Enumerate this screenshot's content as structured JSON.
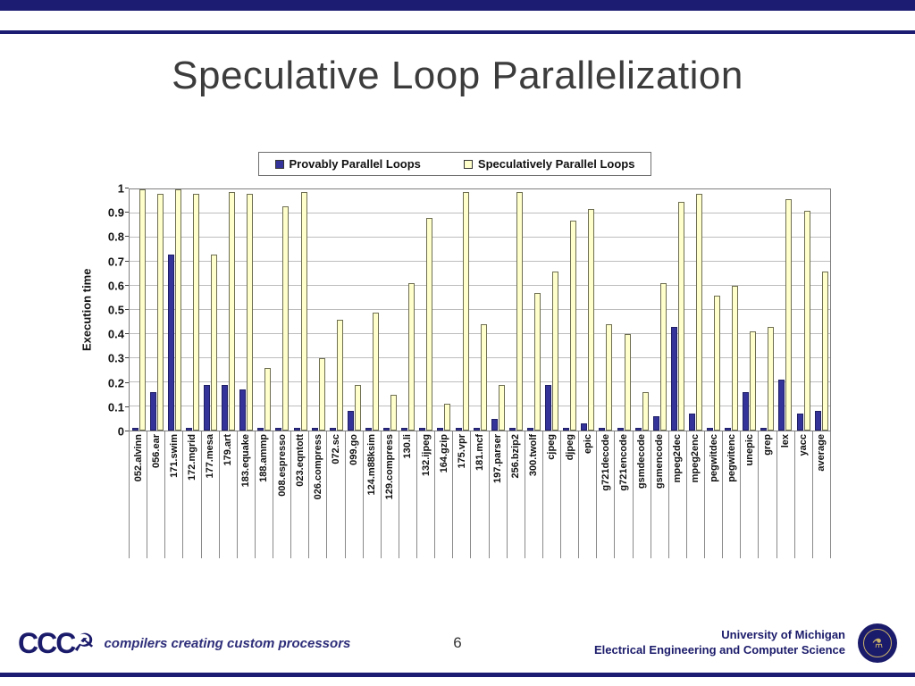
{
  "title": "Speculative Loop Parallelization",
  "chart_data": {
    "type": "bar",
    "title": "",
    "xlabel": "",
    "ylabel": "Execution time",
    "ylim": [
      0,
      1
    ],
    "yticks": [
      0,
      0.1,
      0.2,
      0.3,
      0.4,
      0.5,
      0.6,
      0.7,
      0.8,
      0.9,
      1
    ],
    "grid": true,
    "legend_position": "top",
    "categories": [
      "052.alvinn",
      "056.ear",
      "171.swim",
      "172.mgrid",
      "177.mesa",
      "179.art",
      "183.equake",
      "188.ammp",
      "008.espresso",
      "023.eqntott",
      "026.compress",
      "072.sc",
      "099.go",
      "124.m88ksim",
      "129.compress",
      "130.li",
      "132.ijpeg",
      "164.gzip",
      "175.vpr",
      "181.mcf",
      "197.parser",
      "256.bzip2",
      "300.twolf",
      "cjpeg",
      "djpeg",
      "epic",
      "g721decode",
      "g721encode",
      "gsmdecode",
      "gsmencode",
      "mpeg2dec",
      "mpeg2enc",
      "pegwitdec",
      "pegwitenc",
      "unepic",
      "grep",
      "lex",
      "yacc",
      "average"
    ],
    "series": [
      {
        "name": "Provably Parallel Loops",
        "color": "#333399",
        "values": [
          0.01,
          0.16,
          0.73,
          0.01,
          0.19,
          0.19,
          0.17,
          0.01,
          0.01,
          0.01,
          0.01,
          0.01,
          0.08,
          0.01,
          0.01,
          0.01,
          0.01,
          0.01,
          0.01,
          0.01,
          0.05,
          0.01,
          0.01,
          0.19,
          0.01,
          0.03,
          0.01,
          0.01,
          0.01,
          0.06,
          0.43,
          0.07,
          0.01,
          0.01,
          0.16,
          0.01,
          0.21,
          0.07,
          0.08
        ]
      },
      {
        "name": "Speculatively Parallel Loops",
        "color": "#ffffcc",
        "values": [
          1.0,
          0.98,
          1.0,
          0.98,
          0.73,
          0.99,
          0.98,
          0.26,
          0.93,
          0.99,
          0.3,
          0.46,
          0.19,
          0.49,
          0.15,
          0.61,
          0.88,
          0.11,
          0.99,
          0.44,
          0.19,
          0.99,
          0.57,
          0.66,
          0.87,
          0.92,
          0.44,
          0.4,
          0.16,
          0.61,
          0.95,
          0.98,
          0.56,
          0.6,
          0.41,
          0.43,
          0.96,
          0.91,
          0.66
        ]
      }
    ]
  },
  "footer": {
    "logo_text": "CCC",
    "logo_icon": "hammer-sickle",
    "tagline": "compilers creating custom processors",
    "page_number": "6",
    "org_line1": "University of Michigan",
    "org_line2": "Electrical Engineering and Computer Science"
  },
  "colors": {
    "navy": "#1c1c72",
    "bar_blue": "#333399",
    "bar_yellow": "#ffffcc",
    "grid": "#bdbdbd"
  }
}
